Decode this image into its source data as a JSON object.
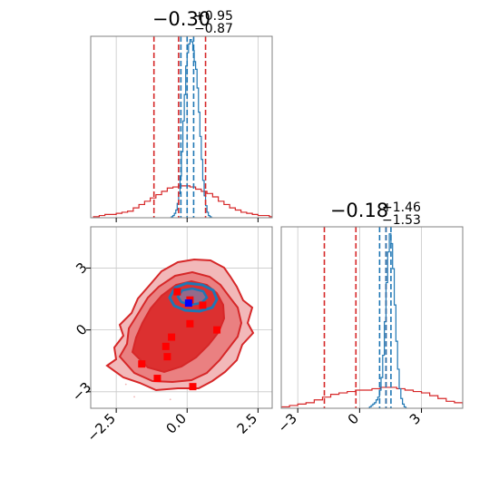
{
  "colors": {
    "primary": "#d62728",
    "secondary": "#1f77b4",
    "marker_red": "#ff0000",
    "marker_blue": "#0000ff",
    "fill_light": "#f2b8b9",
    "fill_mid": "#ea8081",
    "fill_dark": "#dc3030",
    "grid": "#c8c8c8",
    "axis": "#808080"
  },
  "chart_data": {
    "type": "corner",
    "grid": true,
    "parameters": [
      {
        "axis_range": [
          -3.4,
          3.0
        ],
        "ticks": [
          -2.5,
          0.0,
          2.5
        ],
        "tick_labels": [
          "−2.5",
          "0.0",
          "2.5"
        ]
      },
      {
        "axis_range": [
          -3.8,
          5.0
        ],
        "ticks": [
          -3,
          0,
          3
        ],
        "tick_labels": [
          "−3",
          "0",
          "3"
        ]
      }
    ],
    "titles": [
      {
        "median": "−0.30",
        "plus": "+0.95",
        "minus": "−0.87"
      },
      {
        "median": "−0.18",
        "plus": "+1.46",
        "minus": "−1.53"
      }
    ],
    "marginals": [
      {
        "red_quantiles": [
          -1.17,
          -0.3,
          0.65
        ],
        "blue_quantiles": [
          -0.22,
          0.0,
          0.23
        ],
        "red_hist": {
          "x_start": -3.3,
          "bin": 0.2,
          "counts": [
            1,
            2,
            3,
            3,
            4,
            5,
            6,
            9,
            12,
            15,
            18,
            21,
            24,
            27,
            28,
            29,
            29,
            28,
            26,
            24,
            22,
            19,
            15,
            12,
            9,
            7,
            5,
            4,
            3,
            2,
            2,
            1,
            1
          ]
        },
        "blue_hist": {
          "x_start": -0.6,
          "bin": 0.05,
          "counts": [
            0,
            1,
            2,
            4,
            7,
            13,
            22,
            38,
            60,
            88,
            112,
            138,
            150,
            158,
            162,
            160,
            152,
            142,
            135,
            118,
            96,
            74,
            53,
            34,
            20,
            11,
            5,
            2,
            1,
            0
          ]
        }
      },
      {
        "red_quantiles": [
          -1.71,
          -0.18,
          1.28
        ],
        "blue_quantiles": [
          0.97,
          1.28,
          1.52
        ],
        "red_hist": {
          "x_start": -3.8,
          "bin": 0.4,
          "counts": [
            1,
            2,
            3,
            4,
            6,
            8,
            10,
            11,
            12,
            13,
            13,
            14,
            15,
            15,
            14,
            13,
            12,
            11,
            9,
            7,
            5,
            4,
            3,
            2,
            1
          ]
        },
        "blue_hist": {
          "x_start": 0.4,
          "bin": 0.08,
          "counts": [
            0,
            1,
            2,
            3,
            4,
            6,
            8,
            13,
            22,
            38,
            62,
            90,
            112,
            125,
            118,
            100,
            74,
            48,
            28,
            14,
            7,
            3,
            1,
            0
          ]
        }
      }
    ],
    "joint": {
      "red_markers": [
        {
          "x": -0.35,
          "y": 1.85
        },
        {
          "x": 0.1,
          "y": 1.45
        },
        {
          "x": 0.55,
          "y": 1.2
        },
        {
          "x": 0.1,
          "y": 0.3
        },
        {
          "x": 1.05,
          "y": 0.0
        },
        {
          "x": -0.55,
          "y": -0.35
        },
        {
          "x": -0.75,
          "y": -0.8
        },
        {
          "x": -0.7,
          "y": -1.3
        },
        {
          "x": -1.6,
          "y": -1.65
        },
        {
          "x": -1.05,
          "y": -2.35
        },
        {
          "x": 0.2,
          "y": -2.75
        }
      ],
      "blue_markers": [
        {
          "x": 0.05,
          "y": 1.3
        }
      ]
    }
  }
}
